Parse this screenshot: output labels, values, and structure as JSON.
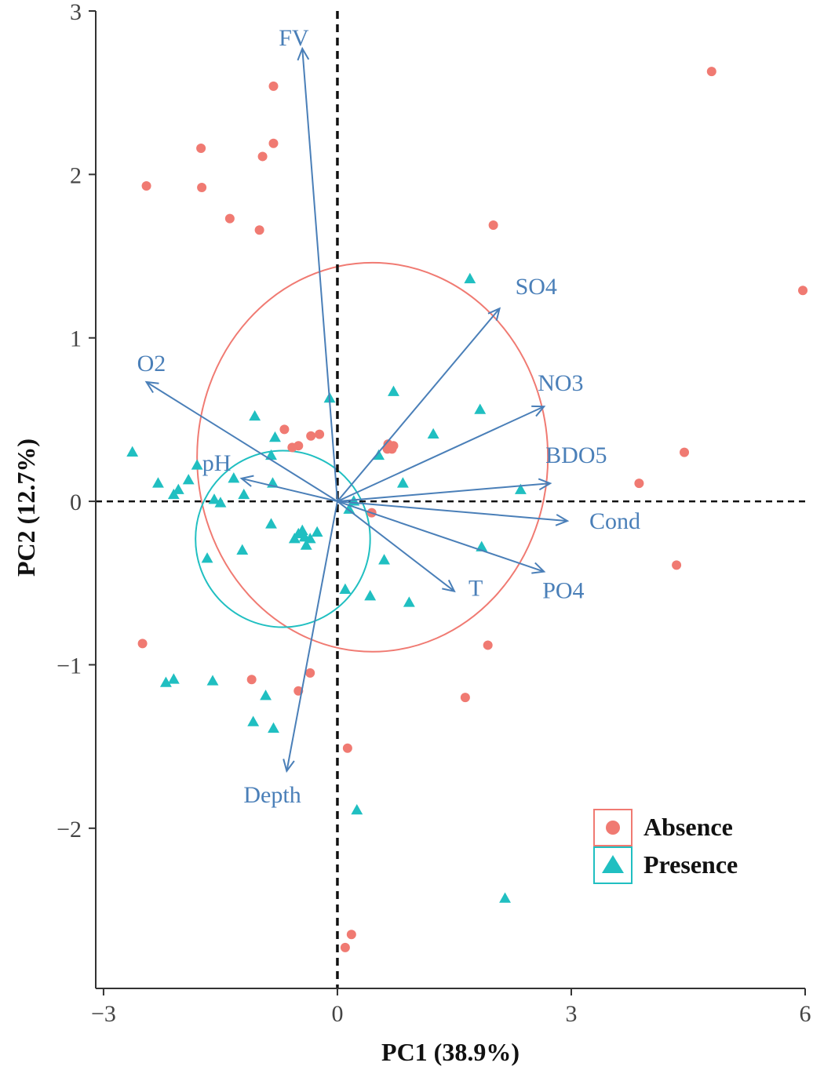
{
  "chart_data": {
    "type": "scatter",
    "subtype": "pca-biplot",
    "xlabel": "PC1 (38.9%)",
    "ylabel": "PC2 (12.7%)",
    "xlim": [
      -3.1,
      6.0
    ],
    "ylim": [
      -2.98,
      3.0
    ],
    "xticks": [
      -3,
      0,
      3,
      6
    ],
    "yticks": [
      -2,
      -1,
      0,
      1,
      2,
      3
    ],
    "xtick_labels": [
      "−3",
      "0",
      "3",
      "6"
    ],
    "ytick_labels": [
      "−2",
      "−1",
      "0",
      "1",
      "2",
      "3"
    ],
    "grid": false,
    "legend_position": "bottom-right",
    "colors": {
      "absence": "#f07a72",
      "presence": "#20bfc1",
      "arrows": "#4a7fb8"
    },
    "series": [
      {
        "name": "Absence",
        "marker": "circle",
        "points": [
          [
            -2.45,
            1.93
          ],
          [
            -1.75,
            2.16
          ],
          [
            -1.74,
            1.92
          ],
          [
            -0.82,
            2.54
          ],
          [
            -0.82,
            2.19
          ],
          [
            -0.96,
            2.11
          ],
          [
            -1.38,
            1.73
          ],
          [
            -1.0,
            1.66
          ],
          [
            -0.68,
            0.44
          ],
          [
            -0.34,
            0.4
          ],
          [
            -0.23,
            0.41
          ],
          [
            -0.5,
            0.34
          ],
          [
            -0.58,
            0.33
          ],
          [
            0.65,
            0.35
          ],
          [
            0.7,
            0.32
          ],
          [
            0.64,
            0.32
          ],
          [
            0.72,
            0.34
          ],
          [
            0.44,
            -0.07
          ],
          [
            4.8,
            2.63
          ],
          [
            2.0,
            1.69
          ],
          [
            5.97,
            1.29
          ],
          [
            4.45,
            0.3
          ],
          [
            3.87,
            0.11
          ],
          [
            4.35,
            -0.39
          ],
          [
            1.93,
            -0.88
          ],
          [
            -2.5,
            -0.87
          ],
          [
            -1.1,
            -1.09
          ],
          [
            -0.35,
            -1.05
          ],
          [
            -0.5,
            -1.16
          ],
          [
            1.64,
            -1.2
          ],
          [
            0.13,
            -1.51
          ],
          [
            0.18,
            -2.65
          ],
          [
            0.1,
            -2.73
          ]
        ]
      },
      {
        "name": "Presence",
        "marker": "triangle",
        "points": [
          [
            1.7,
            1.36
          ],
          [
            0.72,
            0.67
          ],
          [
            1.83,
            0.56
          ],
          [
            1.23,
            0.41
          ],
          [
            0.53,
            0.28
          ],
          [
            0.84,
            0.11
          ],
          [
            2.35,
            0.07
          ],
          [
            -0.1,
            0.63
          ],
          [
            -1.06,
            0.52
          ],
          [
            -0.8,
            0.39
          ],
          [
            -0.85,
            0.28
          ],
          [
            -2.63,
            0.3
          ],
          [
            -2.3,
            0.11
          ],
          [
            -1.91,
            0.13
          ],
          [
            -1.8,
            0.22
          ],
          [
            -2.04,
            0.07
          ],
          [
            -2.1,
            0.04
          ],
          [
            -1.33,
            0.14
          ],
          [
            -1.2,
            0.04
          ],
          [
            -1.58,
            0.01
          ],
          [
            -1.5,
            -0.01
          ],
          [
            -0.83,
            0.11
          ],
          [
            0.21,
            0.0
          ],
          [
            0.15,
            -0.05
          ],
          [
            -0.85,
            -0.14
          ],
          [
            -0.5,
            -0.2
          ],
          [
            -0.26,
            -0.19
          ],
          [
            -0.45,
            -0.18
          ],
          [
            -0.42,
            -0.22
          ],
          [
            -0.55,
            -0.23
          ],
          [
            -0.35,
            -0.23
          ],
          [
            -0.4,
            -0.27
          ],
          [
            -1.22,
            -0.3
          ],
          [
            -1.67,
            -0.35
          ],
          [
            0.6,
            -0.36
          ],
          [
            1.85,
            -0.28
          ],
          [
            0.1,
            -0.54
          ],
          [
            0.42,
            -0.58
          ],
          [
            0.92,
            -0.62
          ],
          [
            -2.2,
            -1.11
          ],
          [
            -2.1,
            -1.09
          ],
          [
            -1.6,
            -1.1
          ],
          [
            -0.92,
            -1.19
          ],
          [
            -1.08,
            -1.35
          ],
          [
            -0.82,
            -1.39
          ],
          [
            0.25,
            -1.89
          ],
          [
            2.15,
            -2.43
          ]
        ]
      }
    ],
    "loadings": [
      {
        "label": "FV",
        "end": [
          -0.45,
          2.77
        ]
      },
      {
        "label": "O2",
        "end": [
          -2.45,
          0.73
        ]
      },
      {
        "label": "pH",
        "end": [
          -1.23,
          0.14
        ]
      },
      {
        "label": "Depth",
        "end": [
          -0.65,
          -1.65
        ]
      },
      {
        "label": "SO4",
        "end": [
          2.08,
          1.18
        ]
      },
      {
        "label": "NO3",
        "end": [
          2.65,
          0.58
        ]
      },
      {
        "label": "BDO5",
        "end": [
          2.73,
          0.11
        ]
      },
      {
        "label": "Cond",
        "end": [
          2.95,
          -0.12
        ]
      },
      {
        "label": "PO4",
        "end": [
          2.65,
          -0.43
        ]
      },
      {
        "label": "T",
        "end": [
          1.5,
          -0.55
        ]
      }
    ],
    "ellipses": [
      {
        "group": "Absence",
        "center": [
          0.45,
          0.27
        ],
        "radii": [
          2.25,
          1.19
        ]
      },
      {
        "group": "Presence",
        "center": [
          -0.7,
          -0.23
        ],
        "radii": [
          1.12,
          0.54
        ]
      }
    ],
    "legend": [
      {
        "label": "Absence",
        "marker": "circle"
      },
      {
        "label": "Presence",
        "marker": "triangle"
      }
    ]
  }
}
